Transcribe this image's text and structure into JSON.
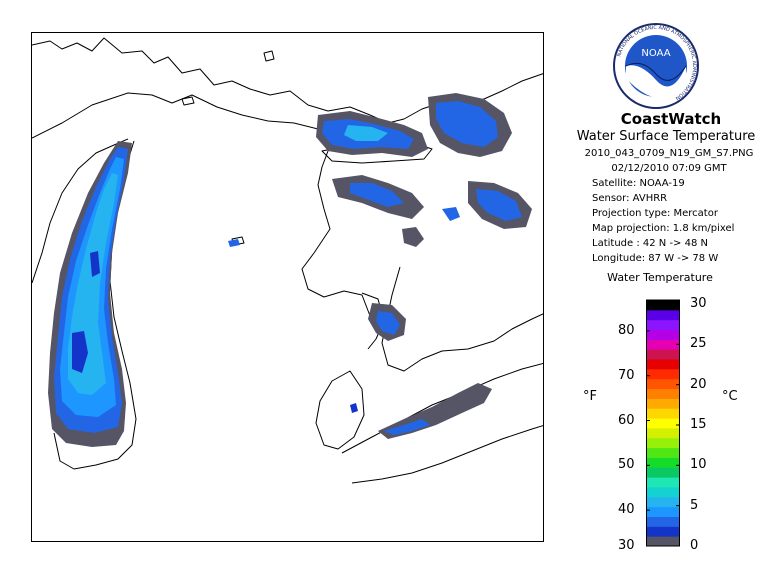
{
  "header": {
    "brand": "CoastWatch",
    "subtitle": "Water Surface Temperature",
    "logo_icon": "noaa-logo-icon",
    "logo_text": "NOAA",
    "logo_ring_text": "NATIONAL OCEANIC AND ATMOSPHERIC ADMINISTRATION"
  },
  "info": {
    "filename": "2010_043_0709_N19_GM_S7.PNG",
    "datetime": "02/12/2010    07:09 GMT",
    "satellite": "Satellite: NOAA-19",
    "sensor": "Sensor: AVHRR",
    "projection_type": "Projection type:  Mercator",
    "map_projection": "Map projection: 1.8 km/pixel",
    "latitude": "Latitude : 42 N -> 48 N",
    "longitude": "Longitude: 87 W -> 78 W"
  },
  "legend": {
    "title": "Water Temperature",
    "unit_f": "°F",
    "unit_c": "°C",
    "fahrenheit_ticks": [
      {
        "label": "80",
        "value": 80
      },
      {
        "label": "70",
        "value": 70
      },
      {
        "label": "60",
        "value": 60
      },
      {
        "label": "50",
        "value": 50
      },
      {
        "label": "40",
        "value": 40
      },
      {
        "label": "30",
        "value": 30
      }
    ],
    "celsius_ticks": [
      {
        "label": "30",
        "value": 30
      },
      {
        "label": "25",
        "value": 25
      },
      {
        "label": "20",
        "value": 20
      },
      {
        "label": "15",
        "value": 15
      },
      {
        "label": "10",
        "value": 10
      },
      {
        "label": "5",
        "value": 5
      },
      {
        "label": "0",
        "value": 0
      }
    ],
    "colors": [
      "#555566",
      "#1433c8",
      "#2266e6",
      "#1e96ff",
      "#25b4f0",
      "#14d2d2",
      "#1ee6b4",
      "#0ac864",
      "#14dc28",
      "#50e614",
      "#96f00a",
      "#d2f000",
      "#ffff00",
      "#ffd700",
      "#ffaa00",
      "#ff7f00",
      "#ff5500",
      "#ff2a00",
      "#e60000",
      "#cd1450",
      "#e600b4",
      "#b400e6",
      "#8c14ff",
      "#5a00e6",
      "#000000"
    ]
  }
}
